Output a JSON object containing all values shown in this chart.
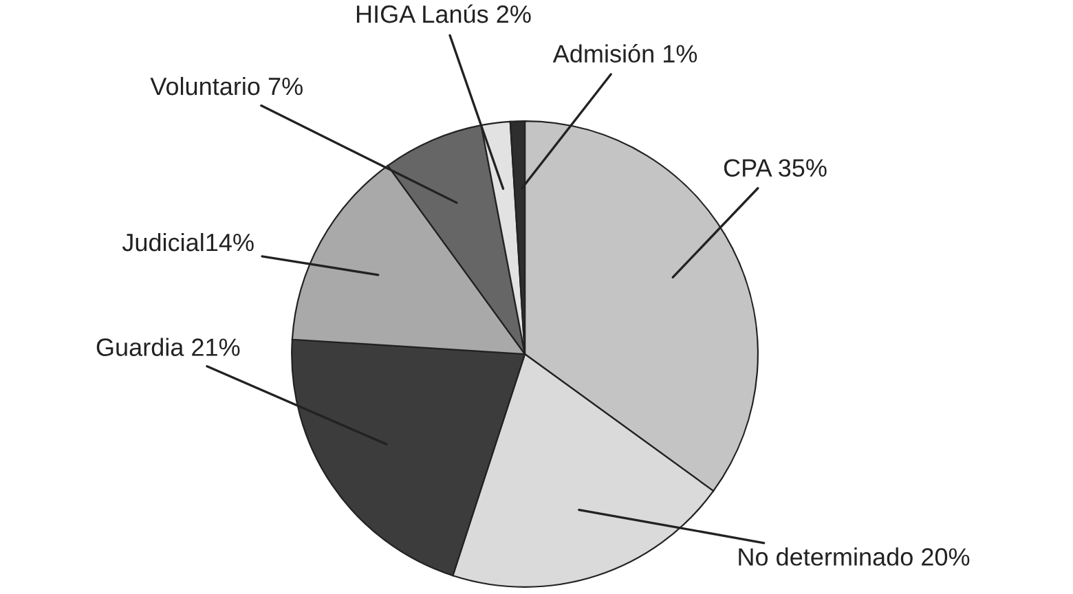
{
  "chart_data": {
    "type": "pie",
    "categories": [
      "CPA 35%",
      "No determinado 20%",
      "Guardia 21%",
      "Judicial14%",
      "Voluntario 7%",
      "HIGA Lanús 2%",
      "Admisión 1%"
    ],
    "values": [
      35,
      20,
      21,
      14,
      7,
      2,
      1
    ],
    "colors": [
      "#c4c4c4",
      "#dadada",
      "#3c3c3c",
      "#a9a9a9",
      "#666666",
      "#e2e2e2",
      "#2e2e2e"
    ]
  }
}
